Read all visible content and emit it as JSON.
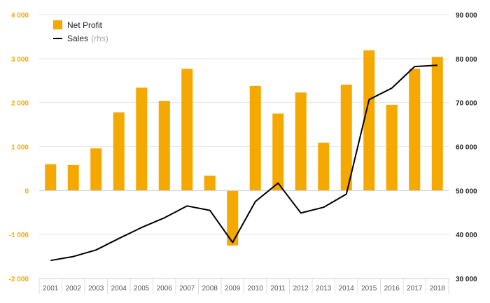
{
  "chart_data": {
    "type": "bar",
    "categories": [
      "2001",
      "2002",
      "2003",
      "2004",
      "2005",
      "2006",
      "2007",
      "2008",
      "2009",
      "2010",
      "2011",
      "2012",
      "2013",
      "2014",
      "2015",
      "2016",
      "2017",
      "2018"
    ],
    "series": [
      {
        "name": "Net Profit",
        "type": "bar",
        "axis": "left",
        "color": "#f5a800",
        "values": [
          600,
          580,
          960,
          1780,
          2340,
          2040,
          2770,
          340,
          -1250,
          2380,
          1750,
          2230,
          1090,
          2410,
          3190,
          1950,
          2770,
          3040
        ]
      },
      {
        "name": "Sales",
        "name_suffix": "(rhs)",
        "type": "line",
        "axis": "right",
        "color": "#000000",
        "values": [
          34100,
          35000,
          36500,
          39100,
          41600,
          43800,
          46500,
          45500,
          38200,
          47500,
          51700,
          44900,
          46200,
          49200,
          70700,
          73300,
          78200,
          78500
        ]
      }
    ],
    "y_left": {
      "ylim": [
        -2000,
        4000
      ],
      "ticks": [
        -2000,
        -1000,
        0,
        1000,
        2000,
        3000,
        4000
      ],
      "tick_labels": [
        "-2 000",
        "-1 000",
        "0",
        "1 000",
        "2 000",
        "3 000",
        "4 000"
      ]
    },
    "y_right": {
      "ylim": [
        30000,
        90000
      ],
      "ticks": [
        30000,
        40000,
        50000,
        60000,
        70000,
        80000,
        90000
      ],
      "tick_labels": [
        "30 000",
        "40 000",
        "50 000",
        "60 000",
        "70 000",
        "80 000",
        "90 000"
      ]
    },
    "grid": true,
    "legend": "top-left"
  }
}
